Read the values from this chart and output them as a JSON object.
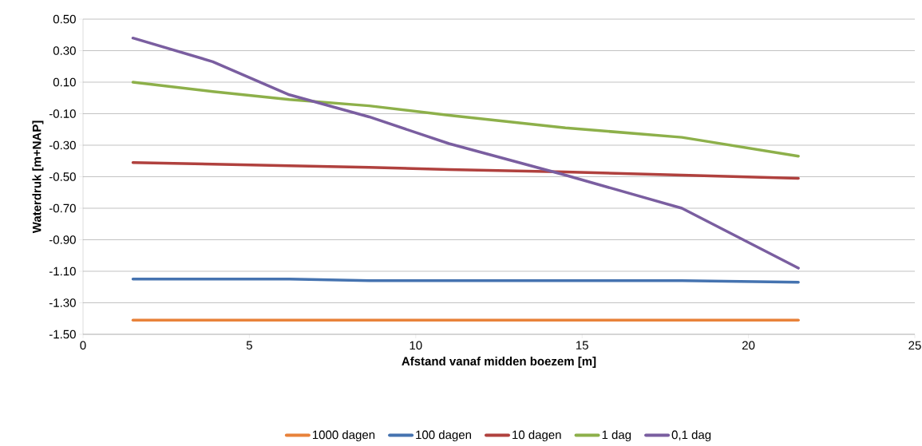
{
  "chart_data": {
    "type": "line",
    "xlabel": "Afstand vanaf midden boezem [m]",
    "ylabel": "Waterdruk [m+NAP]",
    "x": [
      1.5,
      3.9,
      6.2,
      8.6,
      11,
      14.5,
      18,
      21.5
    ],
    "series": [
      {
        "name": "1000 dagen",
        "color": "#e8823a",
        "values": [
          -1.41,
          -1.41,
          -1.41,
          -1.41,
          -1.41,
          -1.41,
          -1.41,
          -1.41
        ]
      },
      {
        "name": "100 dagen",
        "color": "#4573b0",
        "values": [
          -1.15,
          -1.15,
          -1.15,
          -1.16,
          -1.16,
          -1.16,
          -1.16,
          -1.17
        ]
      },
      {
        "name": "10 dagen",
        "color": "#b0413e",
        "values": [
          -0.41,
          -0.42,
          -0.43,
          -0.44,
          -0.455,
          -0.47,
          -0.49,
          -0.51
        ]
      },
      {
        "name": "1 dag",
        "color": "#8db04a",
        "values": [
          0.1,
          0.04,
          -0.01,
          -0.05,
          -0.11,
          -0.19,
          -0.25,
          -0.37
        ]
      },
      {
        "name": "0,1 dag",
        "color": "#7a5ea0",
        "values": [
          0.38,
          0.23,
          0.02,
          -0.12,
          -0.29,
          -0.49,
          -0.7,
          -1.08
        ]
      }
    ],
    "xlim": [
      0,
      25
    ],
    "ylim": [
      -1.5,
      0.5
    ],
    "xticks": [
      0,
      5,
      10,
      15,
      20,
      25
    ],
    "yticks": [
      {
        "value": -1.5,
        "label": "-1.50"
      },
      {
        "value": -1.3,
        "label": "-1.30"
      },
      {
        "value": -1.1,
        "label": "-1.10"
      },
      {
        "value": -0.9,
        "label": "-0.90"
      },
      {
        "value": -0.7,
        "label": "-0.70"
      },
      {
        "value": -0.5,
        "label": "-0.50"
      },
      {
        "value": -0.3,
        "label": "-0.30"
      },
      {
        "value": -0.1,
        "label": "-0.10"
      },
      {
        "value": 0.1,
        "label": "0.10"
      },
      {
        "value": 0.3,
        "label": "0.30"
      },
      {
        "value": 0.5,
        "label": "0.50"
      }
    ],
    "grid": "y",
    "legend": "bottom",
    "marker": "none",
    "line_style": "solid"
  }
}
